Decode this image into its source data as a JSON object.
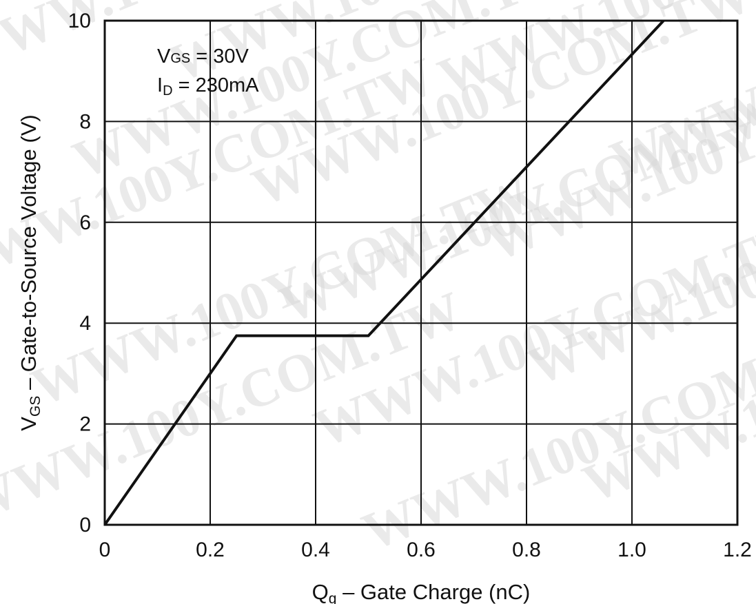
{
  "chart_data": {
    "type": "line",
    "title": "",
    "xlabel": {
      "main": "Q",
      "sub": "g",
      "rest": " – Gate Charge (nC)"
    },
    "ylabel": {
      "main": "V",
      "sub": "GS",
      "rest": " – Gate-to-Source Voltage (V)"
    },
    "xlim": [
      0,
      1.2
    ],
    "ylim": [
      0,
      10
    ],
    "xticks": [
      "0",
      "0.2",
      "0.4",
      "0.6",
      "0.8",
      "1.0",
      "1.2"
    ],
    "yticks": [
      "0",
      "2",
      "4",
      "6",
      "8",
      "10"
    ],
    "grid": true,
    "annotations": [
      {
        "main": "V",
        "sub": "GS",
        "rest": " = 30V"
      },
      {
        "main": "I",
        "sub": "D",
        "rest": " = 230mA"
      }
    ],
    "series": [
      {
        "x": [
          0,
          0.25,
          0.5,
          1.06
        ],
        "y": [
          0,
          3.75,
          3.75,
          10
        ]
      }
    ]
  },
  "watermark": "WWW.100Y.COM.TW",
  "colors": {
    "line": "#111111",
    "grid": "#111111",
    "background": "#ffffff",
    "watermark": "#d9d9d9"
  }
}
